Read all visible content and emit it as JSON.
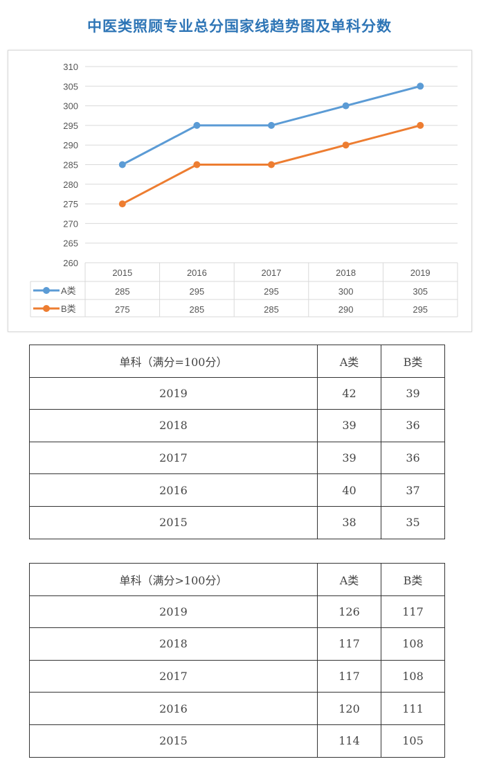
{
  "title": "中医类照顾专业总分国家线趋势图及单科分数",
  "chart_data": {
    "type": "line",
    "title": "",
    "categories": [
      "2015",
      "2016",
      "2017",
      "2018",
      "2019"
    ],
    "series": [
      {
        "name": "A类",
        "values": [
          285,
          295,
          295,
          300,
          305
        ],
        "color": "#5b9bd5"
      },
      {
        "name": "B类",
        "values": [
          275,
          285,
          285,
          290,
          295
        ],
        "color": "#ed7d31"
      }
    ],
    "ylim": [
      260,
      310
    ],
    "yticks": [
      260,
      265,
      270,
      275,
      280,
      285,
      290,
      295,
      300,
      305,
      310
    ],
    "grid": true,
    "legend": "data-table"
  },
  "table1": {
    "header": [
      "单科（满分=100分）",
      "A类",
      "B类"
    ],
    "rows": [
      [
        "2019",
        "42",
        "39"
      ],
      [
        "2018",
        "39",
        "36"
      ],
      [
        "2017",
        "39",
        "36"
      ],
      [
        "2016",
        "40",
        "37"
      ],
      [
        "2015",
        "38",
        "35"
      ]
    ]
  },
  "table2": {
    "header": [
      "单科（满分>100分）",
      "A类",
      "B类"
    ],
    "rows": [
      [
        "2019",
        "126",
        "117"
      ],
      [
        "2018",
        "117",
        "108"
      ],
      [
        "2017",
        "117",
        "108"
      ],
      [
        "2016",
        "120",
        "111"
      ],
      [
        "2015",
        "114",
        "105"
      ]
    ]
  }
}
